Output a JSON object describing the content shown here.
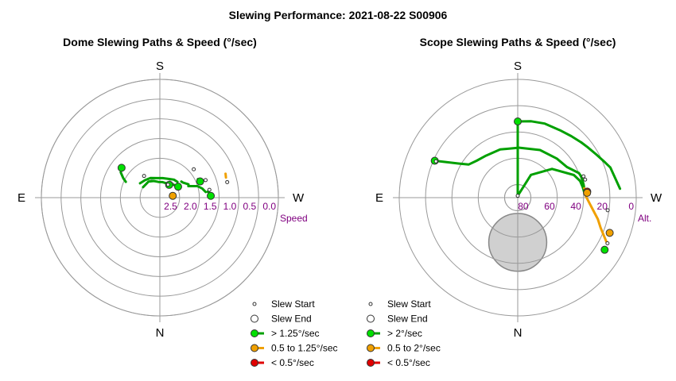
{
  "main_title": "Slewing Performance: 2021-08-22 S00906",
  "colors": {
    "fast": "#00a000",
    "fast_marker": "#00e000",
    "medium": "#f0a000",
    "slow": "#e00000",
    "grid": "#999999",
    "obstruction": "#d0d0d0",
    "tick_label": "#800080"
  },
  "chart_data": [
    {
      "type": "polar",
      "title": "Dome Slewing Paths & Speed (°/sec)",
      "radial_quantity": "Speed",
      "radial_label": "Speed",
      "radial_ticks": [
        "2.5",
        "2.0",
        "1.5",
        "1.0",
        "0.5",
        "0.0"
      ],
      "radial_range": [
        3.0,
        0.0
      ],
      "directions": {
        "top": "S",
        "bottom": "N",
        "left": "E",
        "right": "W"
      },
      "legend": [
        {
          "label": "Slew Start",
          "kind": "start"
        },
        {
          "label": "Slew End",
          "kind": "end"
        },
        {
          "label": "> 1.25°/sec",
          "kind": "fast"
        },
        {
          "label": "0.5 to 1.25°/sec",
          "kind": "medium"
        },
        {
          "label": "< 0.5°/sec",
          "kind": "slow"
        }
      ],
      "paths": [
        {
          "category": "fast",
          "points": [
            [
              122,
              2.5
            ],
            [
              145,
              2.5
            ],
            [
              160,
              2.55
            ],
            [
              175,
              2.6
            ],
            [
              190,
              2.6
            ],
            [
              205,
              2.6
            ],
            [
              220,
              2.55
            ],
            [
              232,
              2.5
            ]
          ]
        },
        {
          "category": "fast",
          "points": [
            [
              126,
              2.38
            ],
            [
              140,
              2.42
            ],
            [
              155,
              2.45
            ],
            [
              172,
              2.5
            ],
            [
              188,
              2.5
            ],
            [
              203,
              2.48
            ],
            [
              218,
              2.42
            ],
            [
              228,
              2.4
            ]
          ]
        },
        {
          "category": "fast",
          "points": [
            [
              115,
              2.05
            ],
            [
              118,
              1.95
            ],
            [
              123,
              1.82
            ],
            [
              128,
              1.77
            ]
          ]
        },
        {
          "category": "fast",
          "points": [
            [
              233,
              2.32
            ],
            [
              237,
              2.3
            ],
            [
              245,
              2.2
            ],
            [
              248,
              2.22
            ]
          ]
        },
        {
          "category": "fast",
          "points": [
            [
              248,
              2.22
            ],
            [
              253,
              2.0
            ],
            [
              258,
              1.9
            ],
            [
              263,
              1.83
            ]
          ]
        },
        {
          "category": "fast",
          "points": [
            [
              244,
              1.93
            ],
            [
              247,
              1.9
            ]
          ]
        },
        {
          "category": "fast",
          "points": [
            [
              263,
              1.78
            ],
            [
              265,
              1.72
            ],
            [
              268,
              1.71
            ]
          ]
        },
        {
          "category": "medium",
          "points": [
            [
              250,
              1.23
            ],
            [
              253,
              1.25
            ]
          ]
        }
      ],
      "start_markers": [
        [
          144,
          2.32
        ],
        [
          249,
          1.76
        ],
        [
          261,
          1.73
        ],
        [
          257,
          1.25
        ],
        [
          230,
          1.88
        ],
        [
          212,
          2.61
        ]
      ],
      "end_markers": [
        [
          262,
          2.67
        ],
        [
          239,
          2.46
        ],
        [
          216,
          2.6
        ],
        [
          128,
          1.77
        ],
        [
          248,
          1.9
        ],
        [
          268,
          1.71
        ]
      ]
    },
    {
      "type": "polar",
      "title": "Scope Slewing Paths & Speed (°/sec)",
      "radial_quantity": "Alt.",
      "radial_label": "Alt.",
      "radial_ticks": [
        "80",
        "60",
        "40",
        "20",
        "0"
      ],
      "radial_range": [
        90,
        0
      ],
      "directions": {
        "top": "S",
        "bottom": "N",
        "left": "E",
        "right": "W"
      },
      "obstruction": {
        "az": 0,
        "alt": 56,
        "radius_deg": 22
      },
      "legend": [
        {
          "label": "Slew Start",
          "kind": "start"
        },
        {
          "label": "Slew End",
          "kind": "end"
        },
        {
          "label": "> 2°/sec",
          "kind": "fast"
        },
        {
          "label": "0.5 to 2°/sec",
          "kind": "medium"
        },
        {
          "label": "< 0.5°/sec",
          "kind": "slow"
        }
      ],
      "paths": [
        {
          "category": "fast",
          "points": [
            [
              180,
              88.6
            ],
            [
              180,
              32
            ]
          ]
        },
        {
          "category": "fast",
          "points": [
            [
              180,
              32
            ],
            [
              190,
              31
            ],
            [
              200,
              30
            ],
            [
              212,
              29.5
            ],
            [
              221,
              28
            ],
            [
              229,
              26
            ]
          ]
        },
        {
          "category": "fast",
          "points": [
            [
              229,
              26
            ],
            [
              234,
              24.5
            ],
            [
              241,
              22
            ],
            [
              247,
              19
            ],
            [
              252,
              16
            ],
            [
              265,
              12
            ]
          ]
        },
        {
          "category": "fast",
          "points": [
            [
              181,
              52
            ],
            [
              160,
              51
            ],
            [
              143,
              50
            ],
            [
              132,
              48
            ],
            [
              124,
              45
            ],
            [
              120,
              38
            ],
            [
              114,
              21
            ]
          ]
        },
        {
          "category": "fast",
          "points": [
            [
              182,
              52
            ],
            [
              205,
              50
            ],
            [
              225,
              48
            ],
            [
              238,
              46
            ],
            [
              248,
              40
            ]
          ]
        },
        {
          "category": "fast",
          "points": [
            [
              248,
              40
            ],
            [
              252,
              39
            ],
            [
              259,
              39
            ],
            [
              262,
              39
            ]
          ]
        },
        {
          "category": "fast",
          "points": [
            [
              180,
              88.6
            ],
            [
              210,
              70
            ],
            [
              230,
              56
            ],
            [
              248,
              44
            ],
            [
              255,
              41
            ],
            [
              261,
              40
            ],
            [
              267,
              39
            ]
          ]
        },
        {
          "category": "medium",
          "points": [
            [
              267,
              39
            ],
            [
              275,
              35
            ],
            [
              285,
              27
            ],
            [
              290,
              23
            ],
            [
              297,
              14
            ]
          ]
        },
        {
          "category": "medium",
          "points": [
            [
              262,
              39
            ],
            [
              264,
              37.5
            ],
            [
              266,
              37
            ]
          ]
        }
      ],
      "start_markers": [
        [
          180,
          88.6
        ],
        [
          114,
          22
        ],
        [
          252,
          37.5
        ],
        [
          255,
          37
        ],
        [
          278,
          21
        ],
        [
          297,
          13.5
        ]
      ],
      "end_markers": [
        [
          180,
          32
        ],
        [
          114,
          21
        ],
        [
          265,
          37
        ],
        [
          266,
          37.2
        ],
        [
          291,
          15.2
        ],
        [
          301,
          13
        ]
      ]
    }
  ]
}
